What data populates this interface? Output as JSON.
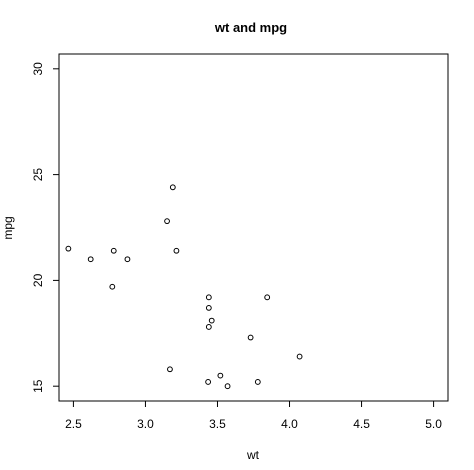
{
  "chart_data": {
    "type": "scatter",
    "title": "wt and mpg",
    "xlabel": "wt",
    "ylabel": "mpg",
    "xlim": [
      2.4,
      5.1
    ],
    "ylim": [
      14.3,
      30.7
    ],
    "xticks": [
      2.5,
      3.0,
      3.5,
      4.0,
      4.5,
      5.0
    ],
    "xtick_labels": [
      "2.5",
      "3.0",
      "3.5",
      "4.0",
      "4.5",
      "5.0"
    ],
    "yticks": [
      15,
      20,
      25,
      30
    ],
    "ytick_labels": [
      "15",
      "20",
      "25",
      "30"
    ],
    "grid": false,
    "marker": "open-circle",
    "points": [
      {
        "x": 2.465,
        "y": 21.5
      },
      {
        "x": 2.62,
        "y": 21.0
      },
      {
        "x": 2.77,
        "y": 19.7
      },
      {
        "x": 2.78,
        "y": 21.4
      },
      {
        "x": 2.875,
        "y": 21.0
      },
      {
        "x": 3.15,
        "y": 22.8
      },
      {
        "x": 3.17,
        "y": 15.8
      },
      {
        "x": 3.19,
        "y": 24.4
      },
      {
        "x": 3.215,
        "y": 21.4
      },
      {
        "x": 3.435,
        "y": 15.2
      },
      {
        "x": 3.44,
        "y": 17.8
      },
      {
        "x": 3.44,
        "y": 18.7
      },
      {
        "x": 3.44,
        "y": 19.2
      },
      {
        "x": 3.46,
        "y": 18.1
      },
      {
        "x": 3.52,
        "y": 15.5
      },
      {
        "x": 3.57,
        "y": 15.0
      },
      {
        "x": 3.73,
        "y": 17.3
      },
      {
        "x": 3.78,
        "y": 15.2
      },
      {
        "x": 3.845,
        "y": 19.2
      },
      {
        "x": 4.07,
        "y": 16.4
      }
    ]
  }
}
